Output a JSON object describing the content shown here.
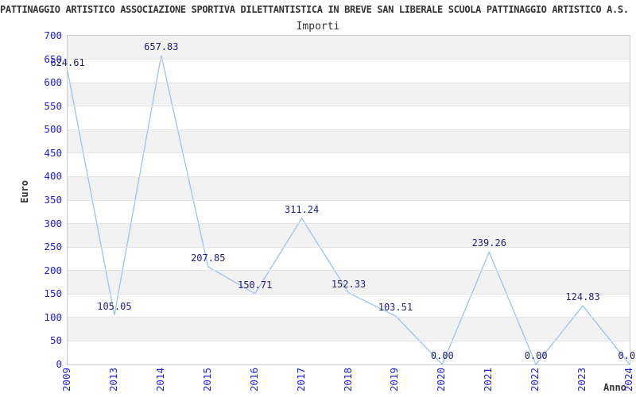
{
  "header": {
    "title": "PATTINAGGIO ARTISTICO ASSOCIAZIONE SPORTIVA DILETTANTISTICA IN BREVE SAN LIBERALE SCUOLA PATTINAGGIO ARTISTICO A.S.",
    "subtitle": "Importi"
  },
  "chart_data": {
    "type": "line",
    "title": "Importi",
    "xlabel": "Anno",
    "ylabel": "Euro",
    "categories": [
      "2009",
      "2013",
      "2014",
      "2015",
      "2016",
      "2017",
      "2018",
      "2019",
      "2020",
      "2021",
      "2022",
      "2023",
      "2024"
    ],
    "values": [
      624.61,
      105.05,
      657.83,
      207.85,
      150.71,
      311.24,
      152.33,
      103.51,
      0.0,
      239.26,
      0.0,
      124.83,
      0.0
    ],
    "point_labels": [
      "624.61",
      "105.05",
      "657.83",
      "207.85",
      "150.71",
      "311.24",
      "152.33",
      "103.51",
      "0.00",
      "239.26",
      "0.00",
      "124.83",
      "0.00"
    ],
    "ylim": [
      0,
      700
    ],
    "y_ticks": [
      0,
      50,
      100,
      150,
      200,
      250,
      300,
      350,
      400,
      450,
      500,
      550,
      600,
      650,
      700
    ],
    "grid": "alternating-horizontal-bands",
    "legend": "none",
    "colors": {
      "line": "#9cc3ee",
      "axis_tick_text": "#2323cc",
      "data_label_text": "#1f1f78",
      "band_gray": "#f2f2f2",
      "gridline": "#e4e4e4",
      "plot_border": "#cccccc",
      "text": "#333333"
    }
  }
}
